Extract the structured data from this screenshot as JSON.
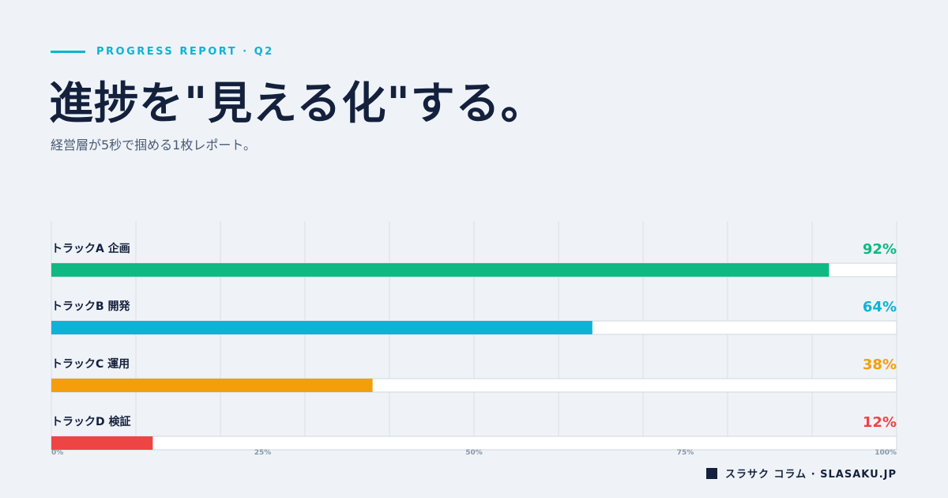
{
  "header": {
    "eyebrow": "PROGRESS REPORT · Q2",
    "title": "進捗を\"見える化\"する。",
    "subtitle": "経営層が5秒で掴める1枚レポート。"
  },
  "chart_data": {
    "type": "bar",
    "orientation": "horizontal",
    "categories": [
      "トラックA 企画",
      "トラックB 開発",
      "トラックC 運用",
      "トラックD 検証"
    ],
    "values": [
      92,
      64,
      38,
      12
    ],
    "value_labels": [
      "92%",
      "64%",
      "38%",
      "12%"
    ],
    "colors": [
      "#10b981",
      "#0bb4d4",
      "#f59e0b",
      "#ef4444"
    ],
    "xlim": [
      0,
      100
    ],
    "x_ticks": [
      "0%",
      "25%",
      "50%",
      "75%",
      "100%"
    ],
    "grid": true,
    "title": "",
    "xlabel": "",
    "ylabel": ""
  },
  "footer": {
    "brand": "スラサク コラム · SLASAKU.JP"
  }
}
